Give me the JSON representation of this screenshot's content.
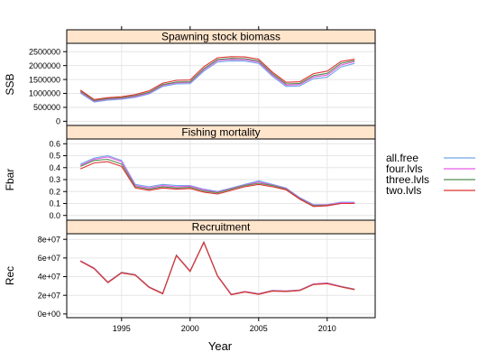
{
  "chart_data": {
    "type": "line",
    "xlabel": "Year",
    "x_ticks": [
      1995,
      2000,
      2005,
      2010
    ],
    "x_range": [
      1991,
      2013.5
    ],
    "grid": true,
    "legend_position": "right",
    "years": [
      1992,
      1993,
      1994,
      1995,
      1996,
      1997,
      1998,
      1999,
      2000,
      2001,
      2002,
      2003,
      2004,
      2005,
      2006,
      2007,
      2008,
      2009,
      2010,
      2011,
      2012
    ],
    "series_styles": [
      {
        "name": "all.free",
        "color": "#6fa8e8"
      },
      {
        "name": "four.lvls",
        "color": "#e85be8"
      },
      {
        "name": "three.lvls",
        "color": "#4d8f4d"
      },
      {
        "name": "two.lvls",
        "color": "#e03030"
      }
    ],
    "panels": [
      {
        "id": "ssb",
        "title": "Spawning stock biomass",
        "ylabel": "SSB",
        "ylim": [
          -150000,
          2800000
        ],
        "y_ticks": [
          0,
          500000,
          1000000,
          1500000,
          2000000,
          2500000
        ],
        "y_tick_labels": [
          "0",
          "500000",
          "1000000",
          "1500000",
          "2000000",
          "2500000"
        ],
        "series": [
          {
            "name": "all.free",
            "values": [
              1010000,
              690000,
              760000,
              790000,
              860000,
              980000,
              1250000,
              1340000,
              1350000,
              1800000,
              2130000,
              2170000,
              2160000,
              2080000,
              1620000,
              1250000,
              1270000,
              1530000,
              1580000,
              1950000,
              2080000
            ]
          },
          {
            "name": "four.lvls",
            "values": [
              1050000,
              720000,
              790000,
              820000,
              890000,
              1010000,
              1290000,
              1380000,
              1390000,
              1850000,
              2180000,
              2220000,
              2210000,
              2130000,
              1670000,
              1300000,
              1320000,
              1590000,
              1660000,
              2020000,
              2140000
            ]
          },
          {
            "name": "three.lvls",
            "values": [
              1080000,
              745000,
              815000,
              845000,
              920000,
              1040000,
              1320000,
              1410000,
              1420000,
              1890000,
              2220000,
              2260000,
              2250000,
              2170000,
              1710000,
              1340000,
              1360000,
              1640000,
              1720000,
              2080000,
              2180000
            ]
          },
          {
            "name": "two.lvls",
            "values": [
              1120000,
              780000,
              850000,
              880000,
              960000,
              1090000,
              1370000,
              1470000,
              1480000,
              1960000,
              2280000,
              2320000,
              2310000,
              2230000,
              1770000,
              1400000,
              1420000,
              1710000,
              1800000,
              2150000,
              2230000
            ]
          }
        ]
      },
      {
        "id": "fbar",
        "title": "Fishing mortality",
        "ylabel": "Fbar",
        "ylim": [
          -0.04,
          0.64
        ],
        "y_ticks": [
          0.0,
          0.1,
          0.2,
          0.3,
          0.4,
          0.5,
          0.6
        ],
        "y_tick_labels": [
          "0.0",
          "0.1",
          "0.2",
          "0.3",
          "0.4",
          "0.5",
          "0.6"
        ],
        "series": [
          {
            "name": "all.free",
            "values": [
              0.43,
              0.48,
              0.5,
              0.46,
              0.26,
              0.24,
              0.26,
              0.25,
              0.25,
              0.22,
              0.2,
              0.23,
              0.26,
              0.29,
              0.26,
              0.23,
              0.15,
              0.09,
              0.09,
              0.11,
              0.11
            ]
          },
          {
            "name": "four.lvls",
            "values": [
              0.42,
              0.47,
              0.49,
              0.45,
              0.25,
              0.23,
              0.25,
              0.24,
              0.245,
              0.215,
              0.195,
              0.225,
              0.255,
              0.28,
              0.255,
              0.225,
              0.145,
              0.085,
              0.09,
              0.105,
              0.105
            ]
          },
          {
            "name": "three.lvls",
            "values": [
              0.41,
              0.46,
              0.47,
              0.43,
              0.24,
              0.22,
              0.24,
              0.23,
              0.235,
              0.205,
              0.19,
              0.22,
              0.25,
              0.27,
              0.25,
              0.22,
              0.14,
              0.08,
              0.085,
              0.1,
              0.1
            ]
          },
          {
            "name": "two.lvls",
            "values": [
              0.39,
              0.44,
              0.45,
              0.41,
              0.23,
              0.21,
              0.23,
              0.22,
              0.225,
              0.195,
              0.18,
              0.21,
              0.24,
              0.26,
              0.24,
              0.215,
              0.135,
              0.075,
              0.08,
              0.1,
              0.1
            ]
          }
        ]
      },
      {
        "id": "rec",
        "title": "Recruitment",
        "ylabel": "Rec",
        "ylim": [
          -4000000,
          86000000
        ],
        "y_ticks": [
          0,
          20000000,
          40000000,
          60000000,
          80000000
        ],
        "y_tick_labels": [
          "0e+00",
          "2e+07",
          "4e+07",
          "6e+07",
          "8e+07"
        ],
        "series": [
          {
            "name": "all.free",
            "values": [
              57000000,
              49000000,
              34000000,
              44500000,
              42000000,
              29000000,
              22000000,
              63000000,
              46000000,
              77000000,
              41000000,
              21000000,
              24000000,
              21500000,
              25000000,
              24500000,
              25500000,
              32000000,
              33000000,
              29500000,
              26500000
            ]
          },
          {
            "name": "four.lvls",
            "values": [
              57200000,
              49200000,
              34200000,
              44700000,
              42200000,
              29200000,
              22200000,
              63200000,
              46200000,
              77200000,
              41200000,
              21200000,
              24200000,
              21700000,
              25200000,
              24700000,
              25700000,
              32200000,
              33200000,
              29700000,
              26700000
            ]
          },
          {
            "name": "three.lvls",
            "values": [
              56800000,
              48800000,
              33800000,
              44300000,
              41800000,
              28800000,
              21800000,
              62800000,
              45800000,
              76800000,
              40800000,
              20800000,
              23800000,
              21300000,
              24800000,
              24300000,
              25300000,
              31800000,
              32800000,
              29300000,
              26300000
            ]
          },
          {
            "name": "two.lvls",
            "values": [
              56500000,
              48500000,
              33500000,
              44000000,
              41500000,
              28500000,
              21500000,
              62500000,
              45500000,
              76500000,
              40500000,
              20500000,
              23500000,
              21000000,
              24500000,
              24000000,
              25000000,
              31500000,
              32500000,
              29000000,
              26000000
            ]
          }
        ]
      }
    ]
  }
}
